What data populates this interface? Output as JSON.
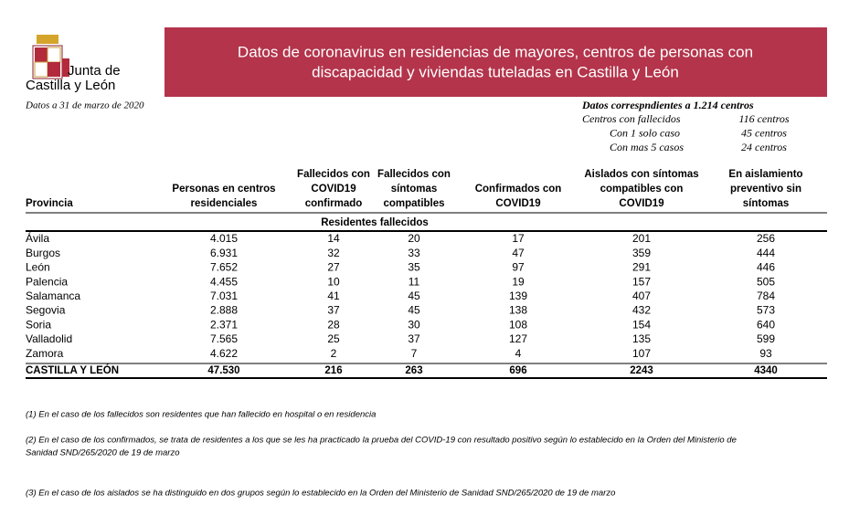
{
  "logo": {
    "line1": "Junta de",
    "line2": "Castilla y León"
  },
  "header": {
    "title_lines": [
      "Datos de coronavirus en residencias de mayores, centros de personas con",
      "discapacidad y viviendas tuteladas en Castilla y León"
    ]
  },
  "date": "Datos a 31 de marzo de 2020",
  "summary": {
    "title": "Datos correspndientes a 1.214 centros",
    "rows": [
      [
        "Centros con fallecidos",
        "116 centros"
      ],
      [
        "Con 1 solo caso",
        "45 centros"
      ],
      [
        "Con mas 5 casos",
        "24 centros"
      ]
    ]
  },
  "table": {
    "columns": [
      [
        "Provincia"
      ],
      [
        "Personas en centros",
        "residenciales"
      ],
      [
        "Fallecidos con",
        "COVID19",
        "confirmado"
      ],
      [
        "Fallecidos con",
        "síntomas",
        "compatibles"
      ],
      [
        "Confirmados con",
        "COVID19"
      ],
      [
        "Aislados con síntomas",
        "compatibles con",
        "COVID19"
      ],
      [
        "En aislamiento",
        "preventivo sin",
        "síntomas"
      ]
    ],
    "group_label": "Residentes fallecidos",
    "rows": [
      [
        "Ávila",
        "4.015",
        "14",
        "20",
        "17",
        "201",
        "256"
      ],
      [
        "Burgos",
        "6.931",
        "32",
        "33",
        "47",
        "359",
        "444"
      ],
      [
        "León",
        "7.652",
        "27",
        "35",
        "97",
        "291",
        "446"
      ],
      [
        "Palencia",
        "4.455",
        "10",
        "11",
        "19",
        "157",
        "505"
      ],
      [
        "Salamanca",
        "7.031",
        "41",
        "45",
        "139",
        "407",
        "784"
      ],
      [
        "Segovia",
        "2.888",
        "37",
        "45",
        "138",
        "432",
        "573"
      ],
      [
        "Soria",
        "2.371",
        "28",
        "30",
        "108",
        "154",
        "640"
      ],
      [
        "Valladolid",
        "7.565",
        "25",
        "37",
        "127",
        "135",
        "599"
      ],
      [
        "Zamora",
        "4.622",
        "2",
        "7",
        "4",
        "107",
        "93"
      ]
    ],
    "total": [
      "CASTILLA Y LEÓN",
      "47.530",
      "216",
      "263",
      "696",
      "2243",
      "4340"
    ]
  },
  "notes": [
    [
      "(1) En el caso de los fallecidos son residentes que han fallecido en hospital o en residencia"
    ],
    [
      "(2) En el caso de los confirmados, se trata de residentes a los que se les ha practicado la prueba del COVID-19 con resultado positivo según lo establecido en la Orden del Ministerio de",
      "Sanidad SND/265/2020 de 19 de marzo"
    ],
    [
      "(3) En el caso de los aislados se ha distinguido en dos grupos según lo establecido en la Orden del Ministerio de Sanidad SND/265/2020 de 19 de marzo"
    ]
  ]
}
